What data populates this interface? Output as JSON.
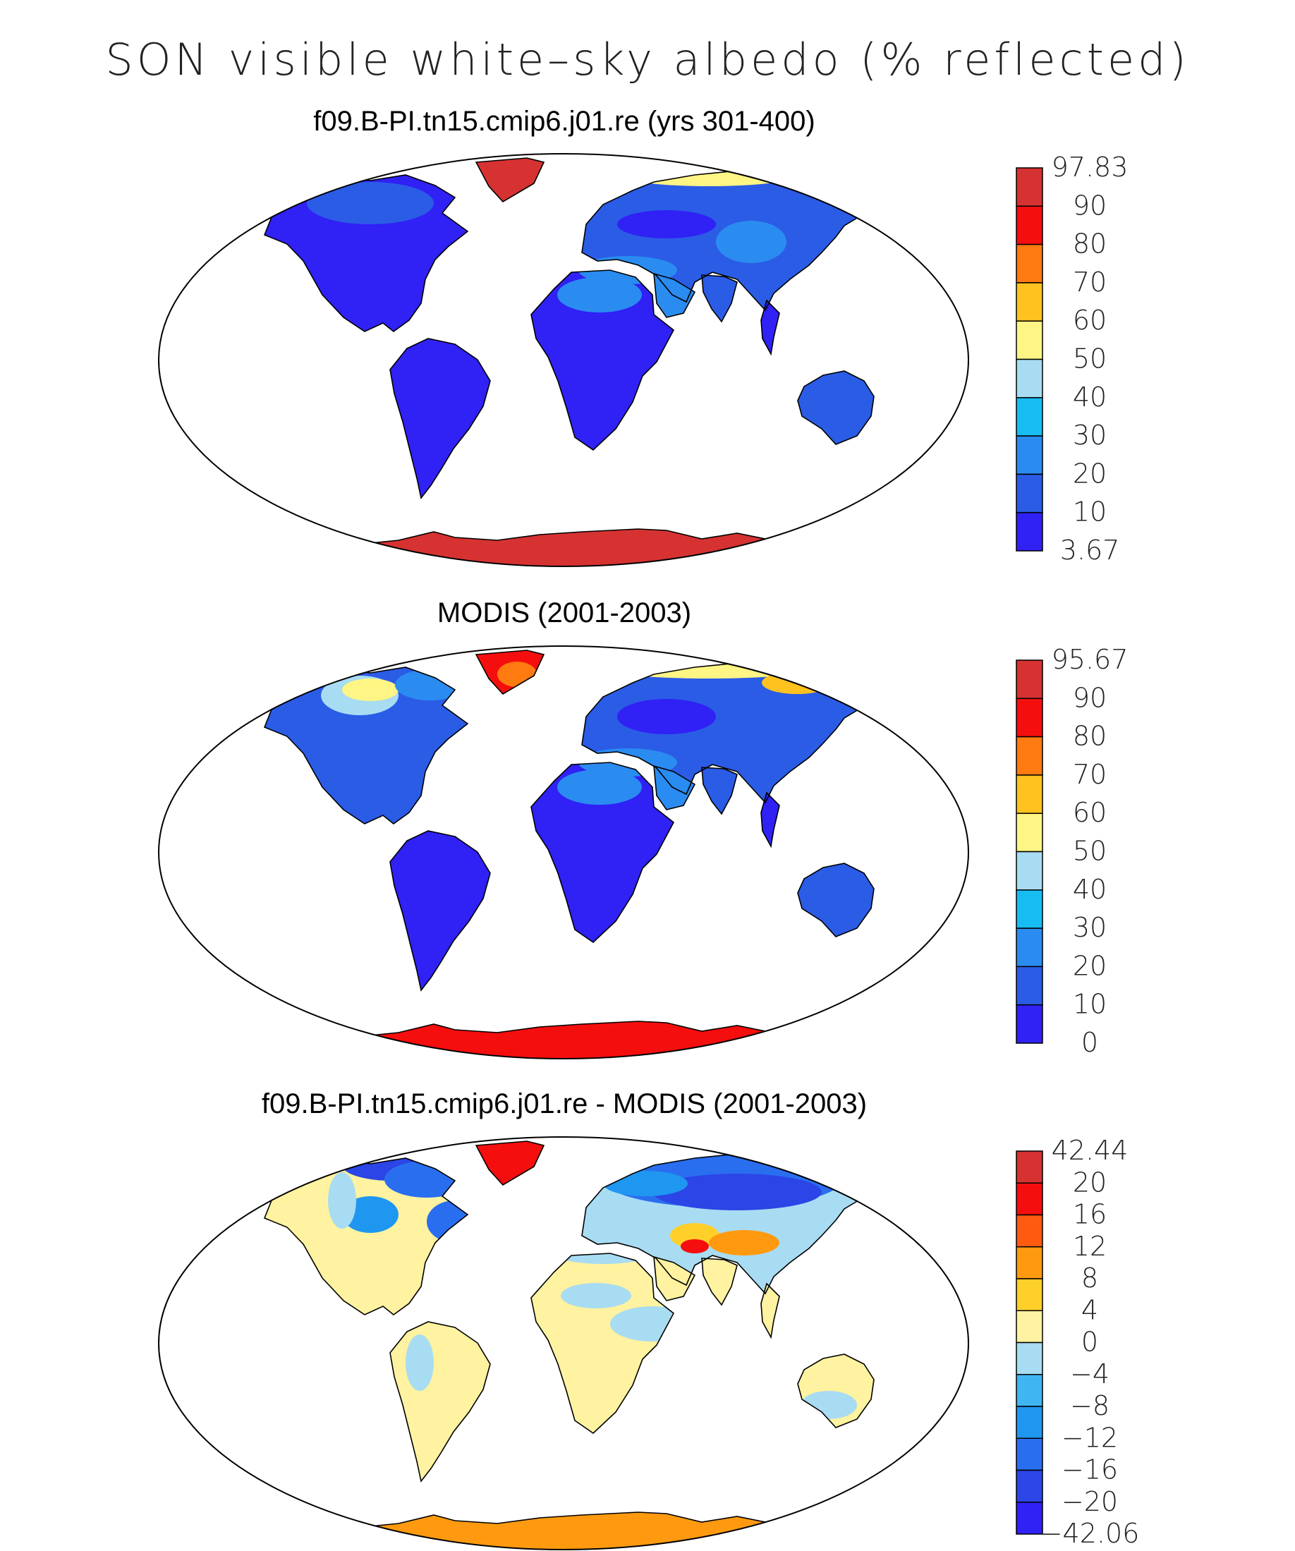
{
  "figure_title": "SON visible white–sky albedo (% reflected)",
  "panels": [
    {
      "title": "f09.B-PI.tn15.cmip6.j01.re (yrs 301-400)",
      "kind": "model",
      "colorbar": {
        "labels": [
          "97.83",
          "90",
          "80",
          "70",
          "60",
          "50",
          "40",
          "30",
          "20",
          "10",
          "3.67"
        ],
        "colors": [
          "#d63232",
          "#f50e0e",
          "#ff7a10",
          "#ffc21e",
          "#fff584",
          "#a8dcf2",
          "#17bdf2",
          "#2a8cf0",
          "#2b5ce6",
          "#3021f5"
        ]
      }
    },
    {
      "title": "MODIS (2001-2003)",
      "kind": "obs",
      "colorbar": {
        "labels": [
          "95.67",
          "90",
          "80",
          "70",
          "60",
          "50",
          "40",
          "30",
          "20",
          "10",
          "0"
        ],
        "colors": [
          "#d63232",
          "#f50e0e",
          "#ff7a10",
          "#ffc21e",
          "#fff584",
          "#a8dcf2",
          "#17bdf2",
          "#2a8cf0",
          "#2b5ce6",
          "#3021f5"
        ]
      }
    },
    {
      "title": "f09.B-PI.tn15.cmip6.j01.re - MODIS (2001-2003)",
      "kind": "diff",
      "colorbar": {
        "labels": [
          "42.44",
          "20",
          "16",
          "12",
          "8",
          "4",
          "0",
          "−4",
          "−8",
          "−12",
          "−16",
          "−20",
          "−42.06"
        ],
        "colors": [
          "#d63232",
          "#f50e0e",
          "#ff5a10",
          "#ff9a10",
          "#ffcf2a",
          "#fff2a0",
          "#a8dcf2",
          "#3fb6f2",
          "#1f97f0",
          "#2a6ef0",
          "#2b45e6",
          "#3021f5"
        ]
      }
    }
  ]
}
